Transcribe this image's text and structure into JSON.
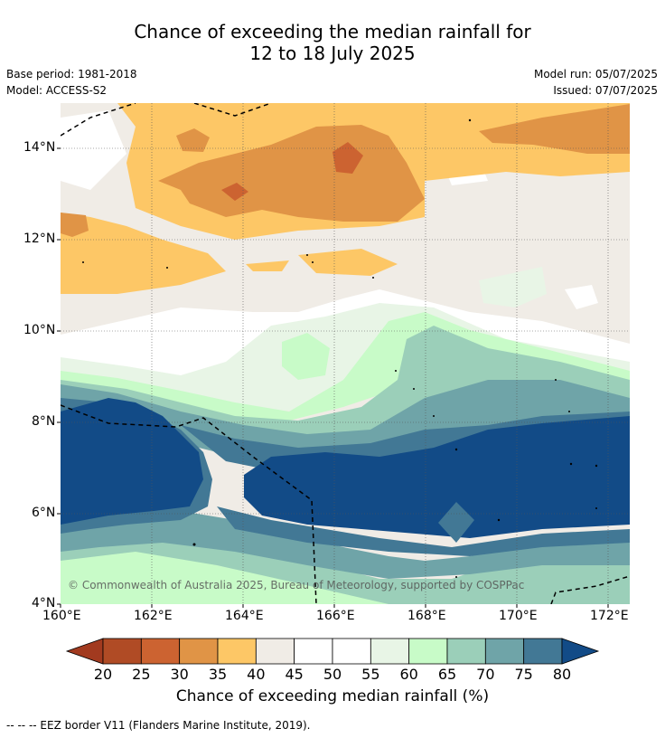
{
  "title": {
    "line1": "Chance of exceeding the median rainfall for",
    "line2": "12 to 18 July 2025"
  },
  "meta": {
    "base_period": "Base period: 1981-2018",
    "model": "Model: ACCESS-S2",
    "model_run": "Model run: 05/07/2025",
    "issued": "Issued: 07/07/2025"
  },
  "map": {
    "x_ticks": [
      "160°E",
      "162°E",
      "164°E",
      "166°E",
      "168°E",
      "170°E",
      "172°E"
    ],
    "y_ticks": [
      "14°N",
      "12°N",
      "10°N",
      "8°N",
      "6°N",
      "4°N"
    ],
    "copyright": "© Commonwealth of Australia 2025, Bureau of Meteorology, supported by COSPPac"
  },
  "colorbar": {
    "title": "Chance of exceeding median rainfall (%)",
    "labels": [
      "20",
      "25",
      "30",
      "35",
      "40",
      "45",
      "50",
      "55",
      "60",
      "65",
      "70",
      "75",
      "80"
    ],
    "colors": [
      "#a23a1f",
      "#b04b25",
      "#cc6331",
      "#e09446",
      "#fdc766",
      "#f0ece6",
      "#ffffff",
      "#ffffff",
      "#e8f5e6",
      "#c8fbc8",
      "#9bcfb9",
      "#6fa4a8",
      "#427895",
      "#124b87"
    ]
  },
  "footnote": "--  --  -- EEZ border V11 (Flanders Marine Institute, 2019)."
}
